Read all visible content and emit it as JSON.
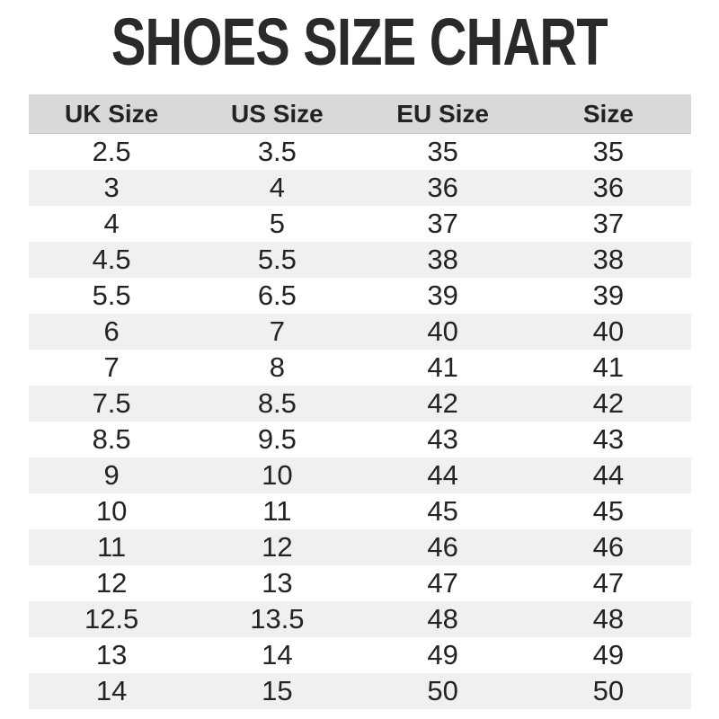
{
  "title": "SHOES SIZE CHART",
  "table": {
    "headers": [
      "UK Size",
      "US Size",
      "EU Size",
      "Size"
    ],
    "rows": [
      [
        "2.5",
        "3.5",
        "35",
        "35"
      ],
      [
        "3",
        "4",
        "36",
        "36"
      ],
      [
        "4",
        "5",
        "37",
        "37"
      ],
      [
        "4.5",
        "5.5",
        "38",
        "38"
      ],
      [
        "5.5",
        "6.5",
        "39",
        "39"
      ],
      [
        "6",
        "7",
        "40",
        "40"
      ],
      [
        "7",
        "8",
        "41",
        "41"
      ],
      [
        "7.5",
        "8.5",
        "42",
        "42"
      ],
      [
        "8.5",
        "9.5",
        "43",
        "43"
      ],
      [
        "9",
        "10",
        "44",
        "44"
      ],
      [
        "10",
        "11",
        "45",
        "45"
      ],
      [
        "11",
        "12",
        "46",
        "46"
      ],
      [
        "12",
        "13",
        "47",
        "47"
      ],
      [
        "12.5",
        "13.5",
        "48",
        "48"
      ],
      [
        "13",
        "14",
        "49",
        "49"
      ],
      [
        "14",
        "15",
        "50",
        "50"
      ]
    ]
  },
  "colors": {
    "title_text": "#2a2a2a",
    "header_bg": "#d9d9d9",
    "row_alt_bg": "#f0f0f0",
    "text": "#232323"
  },
  "chart_data": {
    "type": "table",
    "title": "SHOES SIZE CHART",
    "columns": [
      "UK Size",
      "US Size",
      "EU Size",
      "Size"
    ],
    "series": [
      {
        "name": "UK Size",
        "values": [
          2.5,
          3,
          4,
          4.5,
          5.5,
          6,
          7,
          7.5,
          8.5,
          9,
          10,
          11,
          12,
          12.5,
          13,
          14
        ]
      },
      {
        "name": "US Size",
        "values": [
          3.5,
          4,
          5,
          5.5,
          6.5,
          7,
          8,
          8.5,
          9.5,
          10,
          11,
          12,
          13,
          13.5,
          14,
          15
        ]
      },
      {
        "name": "EU Size",
        "values": [
          35,
          36,
          37,
          38,
          39,
          40,
          41,
          42,
          43,
          44,
          45,
          46,
          47,
          48,
          49,
          50
        ]
      },
      {
        "name": "Size",
        "values": [
          35,
          36,
          37,
          38,
          39,
          40,
          41,
          42,
          43,
          44,
          45,
          46,
          47,
          48,
          49,
          50
        ]
      }
    ],
    "layout": {
      "header_background": "#d9d9d9",
      "zebra_striping": true,
      "grid": false
    }
  }
}
